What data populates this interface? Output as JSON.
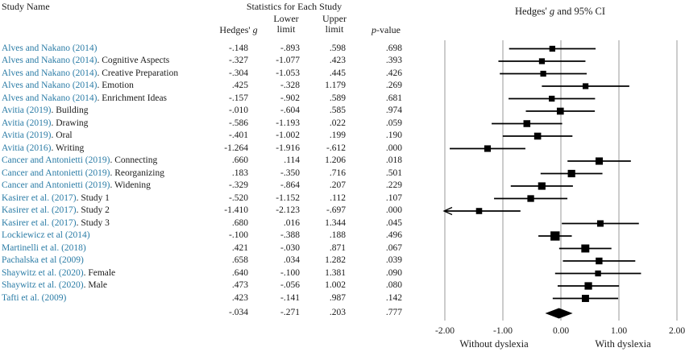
{
  "colors": {
    "study_link": "#2b7ca6",
    "text": "#1a1a1a",
    "gridline": "#999999",
    "marker": "#000000"
  },
  "table": {
    "header": {
      "study_name": "Study Name",
      "stats_title": "Statistics for Each Study",
      "g_pre": "Hedges' ",
      "g_italic": "g",
      "lower_line1": "Lower",
      "lower_line2": "limit",
      "upper_line1": "Upper",
      "upper_line2": "limit",
      "p_italic": "p",
      "p_rest": "-value"
    }
  },
  "plot": {
    "title_pre": "Hedges' ",
    "title_italic": "g",
    "title_post": " and 95% CI",
    "left_label": "Without dyslexia",
    "right_label": "With dyslexia"
  },
  "chart_data": {
    "type": "forest",
    "xlim": [
      -2,
      2
    ],
    "x_ticks": [
      {
        "label": "-2.00",
        "value": -2
      },
      {
        "label": "-1.00",
        "value": -1
      },
      {
        "label": "0.00",
        "value": 0
      },
      {
        "label": "1.00",
        "value": 1
      },
      {
        "label": "2.00",
        "value": 2
      }
    ],
    "grid": true,
    "studies": [
      {
        "name": "Alves and Nakano (2014)",
        "suffix": "",
        "g": "-.148",
        "lower": "-.893",
        "upper": ".598",
        "p": ".698"
      },
      {
        "name": "Alves and Nakano (2014)",
        "suffix": ". Cognitive Aspects",
        "g": "-.327",
        "lower": "-1.077",
        "upper": ".423",
        "p": ".393"
      },
      {
        "name": "Alves and Nakano (2014)",
        "suffix": ". Creative Preparation",
        "g": "-.304",
        "lower": "-1.053",
        "upper": ".445",
        "p": ".426"
      },
      {
        "name": "Alves and Nakano (2014)",
        "suffix": ". Emotion",
        "g": ".425",
        "lower": "-.328",
        "upper": "1.179",
        "p": ".269"
      },
      {
        "name": "Alves and Nakano (2014)",
        "suffix": ". Enrichment Ideas",
        "g": "-.157",
        "lower": "-.902",
        "upper": ".589",
        "p": ".681"
      },
      {
        "name": "Avitia (2019)",
        "suffix": ". Building",
        "g": "-.010",
        "lower": "-.604",
        "upper": ".585",
        "p": ".974"
      },
      {
        "name": "Avitia (2019)",
        "suffix": ". Drawing",
        "g": "-.586",
        "lower": "-1.193",
        "upper": ".022",
        "p": ".059"
      },
      {
        "name": "Avitia (2019)",
        "suffix": ". Oral",
        "g": "-.401",
        "lower": "-1.002",
        "upper": ".199",
        "p": ".190"
      },
      {
        "name": "Avitia (2016)",
        "suffix": ". Writing",
        "g": "-1.264",
        "lower": "-1.916",
        "upper": "-.612",
        "p": ".000"
      },
      {
        "name": "Cancer and Antonietti (2019)",
        "suffix": ". Connecting",
        "g": ".660",
        "lower": ".114",
        "upper": "1.206",
        "p": ".018"
      },
      {
        "name": "Cancer and Antonietti (2019)",
        "suffix": ". Reorganizing",
        "g": ".183",
        "lower": "-.350",
        "upper": ".716",
        "p": ".501"
      },
      {
        "name": "Cancer and Antonietti (2019)",
        "suffix": ". Widening",
        "g": "-.329",
        "lower": "-.864",
        "upper": ".207",
        "p": ".229"
      },
      {
        "name": "Kasirer et al. (2017)",
        "suffix": ". Study 1",
        "g": "-.520",
        "lower": "-1.152",
        "upper": ".112",
        "p": ".107"
      },
      {
        "name": "Kasirer et al. (2017)",
        "suffix": ". Study 2",
        "g": "-1.410",
        "lower": "-2.123",
        "upper": "-.697",
        "p": ".000"
      },
      {
        "name": "Kasirer et al. (2017)",
        "suffix": ". Study 3",
        "g": ".680",
        "lower": ".016",
        "upper": "1.344",
        "p": ".045"
      },
      {
        "name": "Lockiewicz et al (2014)",
        "suffix": "",
        "g": "-.100",
        "lower": "-.388",
        "upper": ".188",
        "p": ".496"
      },
      {
        "name": "Martinelli et al. (2018)",
        "suffix": "",
        "g": ".421",
        "lower": "-.030",
        "upper": ".871",
        "p": ".067"
      },
      {
        "name": "Pachalska et al (2009)",
        "suffix": "",
        "g": ".658",
        "lower": ".034",
        "upper": "1.282",
        "p": ".039"
      },
      {
        "name": "Shaywitz et al. (2020)",
        "suffix": ". Female",
        "g": ".640",
        "lower": "-.100",
        "upper": "1.381",
        "p": ".090"
      },
      {
        "name": "Shaywitz et al. (2020)",
        "suffix": ". Male",
        "g": ".473",
        "lower": "-.056",
        "upper": "1.002",
        "p": ".080"
      },
      {
        "name": "Tafti et al. (2009)",
        "suffix": "",
        "g": ".423",
        "lower": "-.141",
        "upper": ".987",
        "p": ".142"
      }
    ],
    "summary": {
      "g": "-.034",
      "lower": "-.271",
      "upper": ".203",
      "p": ".777"
    }
  }
}
